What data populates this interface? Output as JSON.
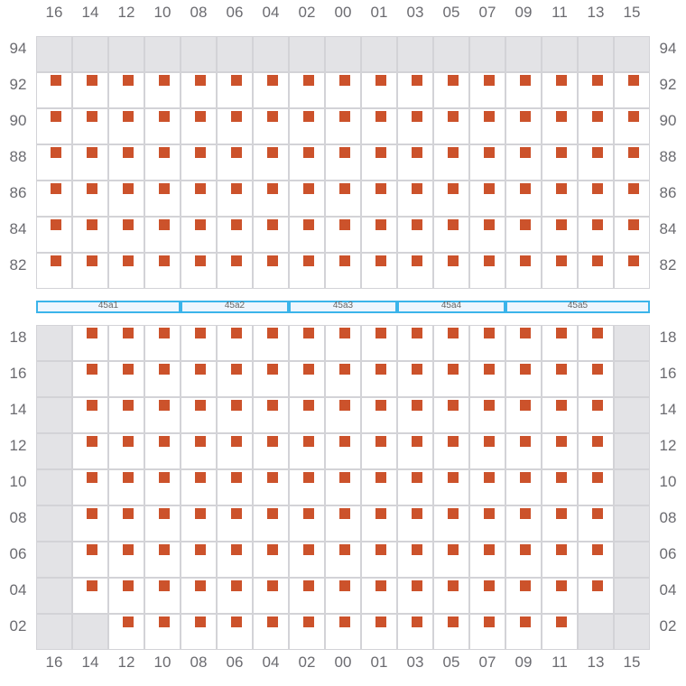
{
  "columns": [
    "16",
    "14",
    "12",
    "10",
    "08",
    "06",
    "04",
    "02",
    "00",
    "01",
    "03",
    "05",
    "07",
    "09",
    "11",
    "13",
    "15"
  ],
  "top_section": {
    "rows": [
      {
        "label": "94",
        "cells": "BBBBBBBBBBBBBBBBB"
      },
      {
        "label": "92",
        "cells": "SSSSSSSSSSSSSSSSS"
      },
      {
        "label": "90",
        "cells": "SSSSSSSSSSSSSSSSS"
      },
      {
        "label": "88",
        "cells": "SSSSSSSSSSSSSSSSS"
      },
      {
        "label": "86",
        "cells": "SSSSSSSSSSSSSSSSS"
      },
      {
        "label": "84",
        "cells": "SSSSSSSSSSSSSSSSS"
      },
      {
        "label": "82",
        "cells": "SSSSSSSSSSSSSSSSS"
      }
    ]
  },
  "zones": [
    {
      "label": "45a1",
      "span": 4
    },
    {
      "label": "45a2",
      "span": 3
    },
    {
      "label": "45a3",
      "span": 3
    },
    {
      "label": "45a4",
      "span": 3
    },
    {
      "label": "45a5",
      "span": 4
    }
  ],
  "bottom_section": {
    "rows": [
      {
        "label": "18",
        "cells": "BSSSSSSSSSSSSSSSB"
      },
      {
        "label": "16",
        "cells": "BSSSSSSSSSSSSSSSB"
      },
      {
        "label": "14",
        "cells": "BSSSSSSSSSSSSSSSB"
      },
      {
        "label": "12",
        "cells": "BSSSSSSSSSSSSSSSB"
      },
      {
        "label": "10",
        "cells": "BSSSSSSSSSSSSSSSB"
      },
      {
        "label": "08",
        "cells": "BSSSSSSSSSSSSSSSB"
      },
      {
        "label": "06",
        "cells": "BSSSSSSSSSSSSSSSB"
      },
      {
        "label": "04",
        "cells": "BSSSSSSSSSSSSSSSB"
      },
      {
        "label": "02",
        "cells": "BBSSSSSSSSSSSSSBB"
      }
    ]
  },
  "legend_codes": {
    "S": "available-seat",
    "B": "blocked"
  },
  "colors": {
    "seat": "#cc522b",
    "blocked": "#e3e3e6",
    "zone_border": "#3bb4ea",
    "zone_fill": "#eef6fe"
  }
}
